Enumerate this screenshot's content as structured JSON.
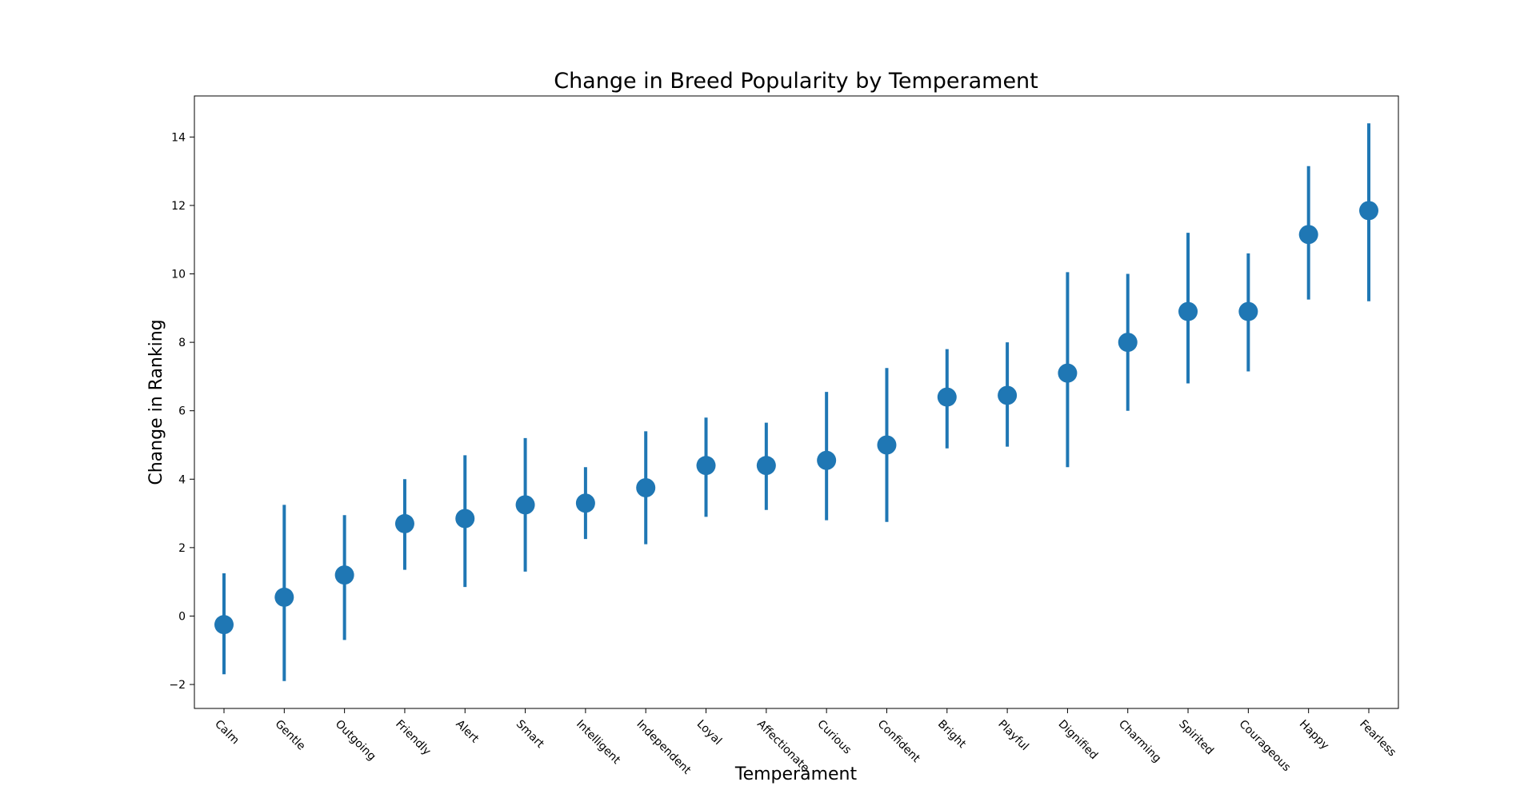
{
  "chart_data": {
    "type": "scatter",
    "title": "Change in Breed Popularity by Temperament",
    "xlabel": "Temperament",
    "ylabel": "Change in Ranking",
    "ylim": [
      -2.7,
      15.2
    ],
    "yticks": [
      -2,
      0,
      2,
      4,
      6,
      8,
      10,
      12,
      14
    ],
    "ytick_labels": [
      "−2",
      "0",
      "2",
      "4",
      "6",
      "8",
      "10",
      "12",
      "14"
    ],
    "grid": false,
    "color": "#1f77b4",
    "categories": [
      "Calm",
      "Gentle",
      "Outgoing",
      "Friendly",
      "Alert",
      "Smart",
      "Intelligent",
      "Independent",
      "Loyal",
      "Affectionate",
      "Curious",
      "Confident",
      "Bright",
      "Playful",
      "Dignified",
      "Charming",
      "Spirited",
      "Courageous",
      "Happy",
      "Fearless"
    ],
    "series": [
      {
        "values": [
          -0.25,
          0.55,
          1.2,
          2.7,
          2.85,
          3.25,
          3.3,
          3.75,
          4.4,
          4.4,
          4.55,
          5.0,
          6.4,
          6.45,
          7.1,
          8.0,
          8.9,
          8.9,
          11.15,
          11.85
        ],
        "lower": [
          -1.7,
          -1.9,
          -0.7,
          1.35,
          0.85,
          1.3,
          2.25,
          2.1,
          2.9,
          3.1,
          2.8,
          2.75,
          4.9,
          4.95,
          4.35,
          6.0,
          6.8,
          7.15,
          9.25,
          9.2
        ],
        "upper": [
          1.25,
          3.25,
          2.95,
          4.0,
          4.7,
          5.2,
          4.35,
          5.4,
          5.8,
          5.65,
          6.55,
          7.25,
          7.8,
          8.0,
          10.05,
          10.0,
          11.2,
          10.6,
          13.15,
          14.4
        ]
      }
    ]
  }
}
